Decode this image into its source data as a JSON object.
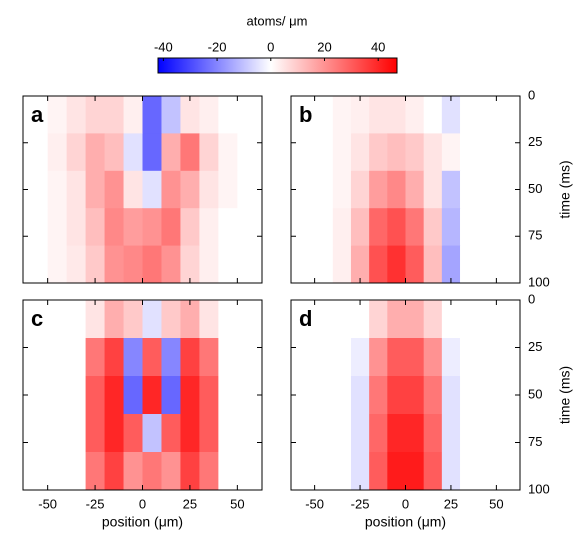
{
  "colorbar": {
    "label": "atoms/ μm",
    "clim": [
      -42,
      47
    ],
    "ticks": [
      -40,
      -20,
      0,
      20,
      40
    ],
    "cmap": [
      "#0000ff",
      "#ffffff",
      "#ff0000"
    ]
  },
  "chart_data": [
    {
      "type": "heatmap",
      "label": "a",
      "xbins": [
        -60,
        -50,
        -40,
        -30,
        -20,
        -10,
        0,
        10,
        20,
        30,
        40,
        50,
        60
      ],
      "ybins": [
        0,
        20,
        40,
        60,
        80,
        100
      ],
      "values": [
        [
          0,
          2,
          5,
          8,
          8,
          3,
          -25,
          -10,
          5,
          3,
          0,
          0
        ],
        [
          0,
          3,
          8,
          15,
          12,
          -5,
          -25,
          15,
          25,
          8,
          2,
          0
        ],
        [
          0,
          2,
          5,
          15,
          20,
          5,
          -5,
          20,
          15,
          5,
          2,
          0
        ],
        [
          0,
          2,
          5,
          12,
          22,
          18,
          20,
          25,
          10,
          3,
          0,
          0
        ],
        [
          0,
          2,
          4,
          10,
          20,
          22,
          25,
          20,
          8,
          3,
          0,
          0
        ]
      ],
      "xlim": [
        -63,
        63
      ],
      "ylim": [
        0,
        100
      ],
      "xticks": [
        -50,
        -25,
        0,
        25,
        50
      ],
      "yticks": [
        0,
        25,
        50,
        75,
        100
      ],
      "show_xticklabels": false,
      "show_yticklabels": false
    },
    {
      "type": "heatmap",
      "label": "b",
      "xbins": [
        -60,
        -50,
        -40,
        -30,
        -20,
        -10,
        0,
        10,
        20,
        30,
        40,
        50,
        60
      ],
      "ybins": [
        0,
        20,
        40,
        60,
        80,
        100
      ],
      "values": [
        [
          0,
          0,
          2,
          3,
          5,
          5,
          3,
          0,
          -5,
          0,
          0,
          0
        ],
        [
          0,
          0,
          2,
          5,
          10,
          12,
          10,
          5,
          2,
          0,
          0,
          0
        ],
        [
          0,
          0,
          2,
          8,
          18,
          22,
          15,
          5,
          -10,
          0,
          0,
          0
        ],
        [
          0,
          0,
          3,
          12,
          28,
          32,
          25,
          10,
          -12,
          0,
          0,
          0
        ],
        [
          0,
          0,
          3,
          15,
          32,
          38,
          30,
          12,
          -15,
          0,
          0,
          0
        ]
      ],
      "xlim": [
        -63,
        63
      ],
      "ylim": [
        0,
        100
      ],
      "xticks": [
        -50,
        -25,
        0,
        25,
        50
      ],
      "yticks": [
        0,
        25,
        50,
        75,
        100
      ],
      "show_xticklabels": false,
      "show_yticklabels": true,
      "ylabel": "time (ms)"
    },
    {
      "type": "heatmap",
      "label": "c",
      "xbins": [
        -60,
        -50,
        -40,
        -30,
        -20,
        -10,
        0,
        10,
        20,
        30,
        40,
        50,
        60
      ],
      "ybins": [
        0,
        20,
        40,
        60,
        80,
        100
      ],
      "values": [
        [
          0,
          0,
          0,
          5,
          15,
          10,
          -5,
          10,
          15,
          5,
          0,
          0
        ],
        [
          0,
          0,
          0,
          25,
          35,
          -20,
          30,
          -20,
          35,
          25,
          0,
          0
        ],
        [
          0,
          0,
          0,
          30,
          40,
          -25,
          40,
          -25,
          40,
          30,
          0,
          0
        ],
        [
          0,
          0,
          0,
          30,
          40,
          30,
          -10,
          30,
          40,
          30,
          0,
          0
        ],
        [
          0,
          0,
          0,
          25,
          35,
          20,
          25,
          20,
          35,
          25,
          0,
          0
        ]
      ],
      "xlim": [
        -63,
        63
      ],
      "ylim": [
        0,
        100
      ],
      "xticks": [
        -50,
        -25,
        0,
        25,
        50
      ],
      "yticks": [
        0,
        25,
        50,
        75,
        100
      ],
      "show_xticklabels": true,
      "show_yticklabels": false,
      "xlabel": "position (μm)"
    },
    {
      "type": "heatmap",
      "label": "d",
      "xbins": [
        -60,
        -50,
        -40,
        -30,
        -20,
        -10,
        0,
        10,
        20,
        30,
        40,
        50,
        60
      ],
      "ybins": [
        0,
        20,
        40,
        60,
        80,
        100
      ],
      "values": [
        [
          0,
          0,
          0,
          0,
          8,
          15,
          15,
          8,
          0,
          0,
          0,
          0
        ],
        [
          0,
          0,
          0,
          -3,
          20,
          30,
          30,
          20,
          -3,
          0,
          0,
          0
        ],
        [
          0,
          0,
          0,
          -5,
          25,
          35,
          35,
          25,
          -5,
          0,
          0,
          0
        ],
        [
          0,
          0,
          0,
          -5,
          28,
          40,
          40,
          28,
          -5,
          0,
          0,
          0
        ],
        [
          0,
          0,
          0,
          -5,
          30,
          42,
          42,
          30,
          -5,
          0,
          0,
          0
        ]
      ],
      "xlim": [
        -63,
        63
      ],
      "ylim": [
        0,
        100
      ],
      "xticks": [
        -50,
        -25,
        0,
        25,
        50
      ],
      "yticks": [
        0,
        25,
        50,
        75,
        100
      ],
      "show_xticklabels": true,
      "show_yticklabels": true,
      "xlabel": "position (μm)",
      "ylabel": "time (ms)"
    }
  ]
}
